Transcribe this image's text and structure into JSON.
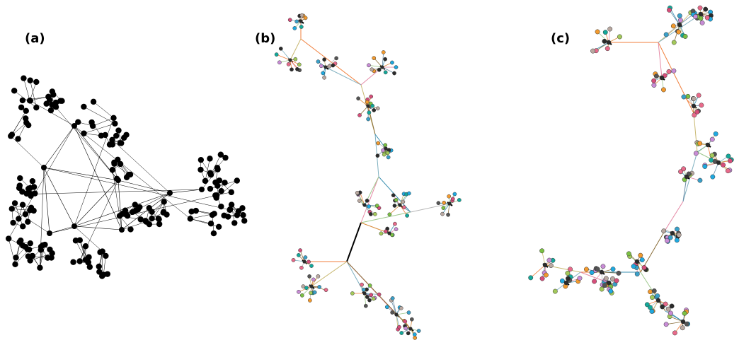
{
  "panels": [
    {
      "label": "(a)"
    },
    {
      "label": "(b)"
    },
    {
      "label": "(c)"
    }
  ],
  "colors": {
    "panel_a": {
      "node": "#000000",
      "edge": "#000000"
    },
    "node_palette": [
      "#2b2b2b",
      "#e86a8a",
      "#7bc043",
      "#f29a2e",
      "#c88cd6",
      "#1fa9e0",
      "#14a89a",
      "#b9a8a0",
      "#555555",
      "#d64e7a",
      "#3aa0c9",
      "#a3c95a"
    ],
    "edge_palette": [
      "#f07f3c",
      "#c8b870",
      "#7fb0c0",
      "#e58aa6",
      "#8a6e3a",
      "#3a8fb0",
      "#9ec88c",
      "#6d8fa8",
      "#b8b8b8",
      "#d98b3a"
    ],
    "hub_edge": "#000000"
  }
}
